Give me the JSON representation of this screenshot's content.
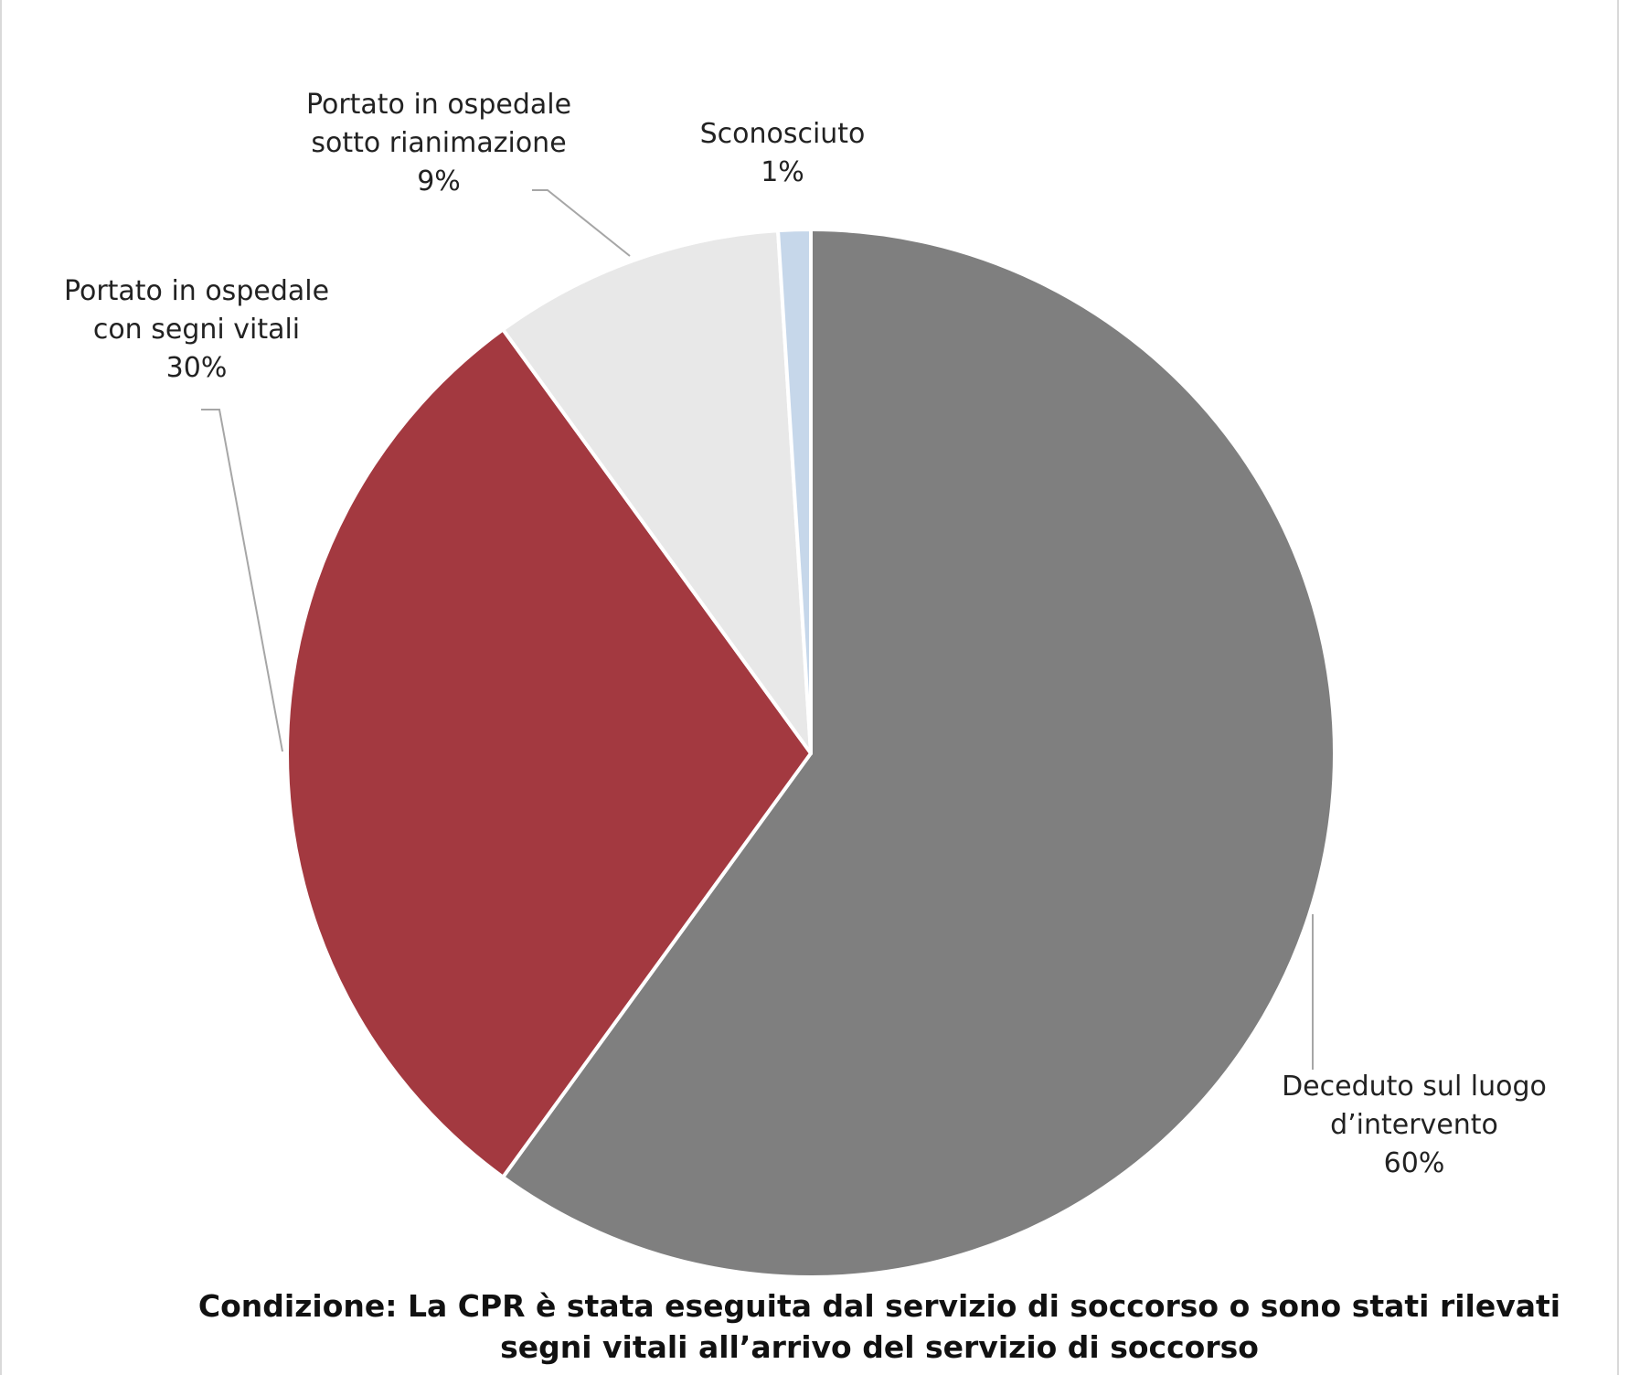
{
  "chart_data": {
    "type": "pie",
    "start_angle_deg": 0,
    "direction": "clockwise",
    "slices": [
      {
        "name": "Deceduto sul luogo d’intervento",
        "label_lines": [
          "Deceduto sul luogo",
          "d’intervento"
        ],
        "value": 60,
        "value_label": "60%",
        "color": "#7f7f7f"
      },
      {
        "name": "Portato in ospedale con segni vitali",
        "label_lines": [
          "Portato in ospedale",
          "con segni vitali"
        ],
        "value": 30,
        "value_label": "30%",
        "color": "#a33940"
      },
      {
        "name": "Portato in ospedale sotto rianimazione",
        "label_lines": [
          "Portato in ospedale",
          "sotto rianimazione"
        ],
        "value": 9,
        "value_label": "9%",
        "color": "#e8e8e8"
      },
      {
        "name": "Sconosciuto",
        "label_lines": [
          "Sconosciuto"
        ],
        "value": 1,
        "value_label": "1%",
        "color": "#c6d7ea"
      }
    ],
    "caption_lines": [
      "Condizione: La CPR è stata eseguita dal servizio di soccorso o sono stati rilevati",
      "segni vitali all’arrivo del servizio di soccorso"
    ]
  }
}
